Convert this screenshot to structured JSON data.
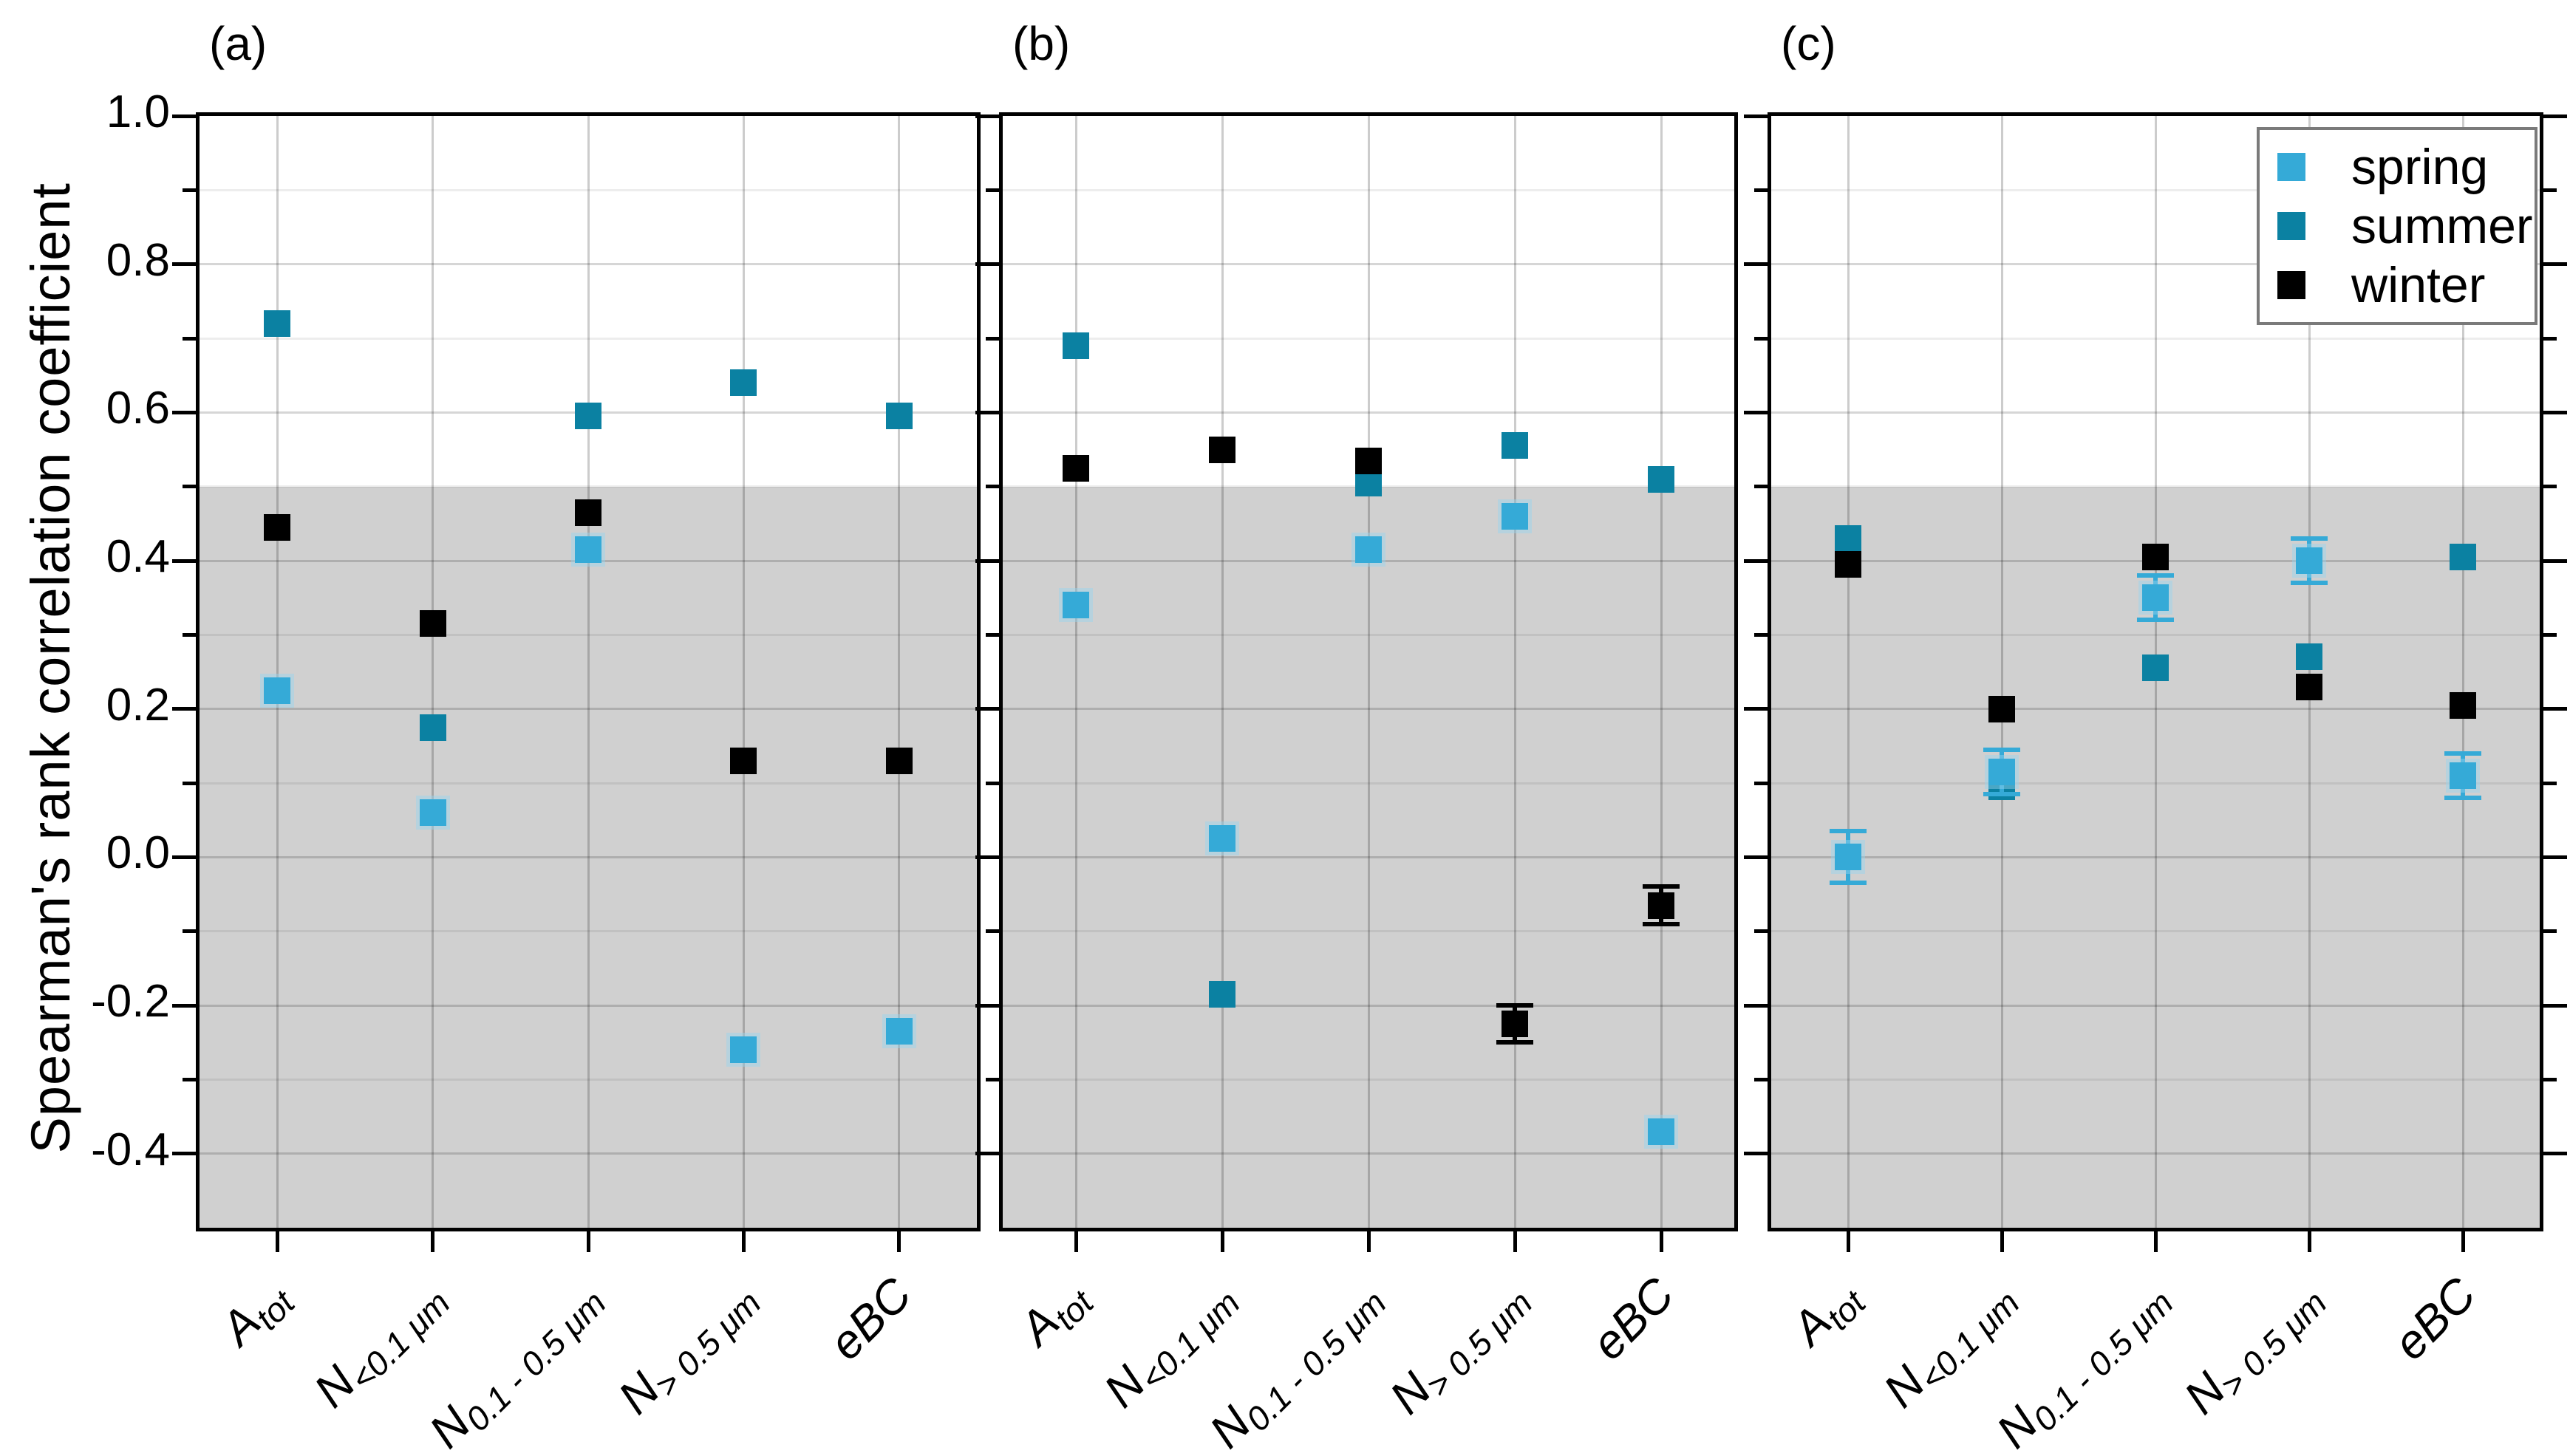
{
  "figure": {
    "y_axis": {
      "label": "Spearman's rank correlation coefficient",
      "min": -0.5,
      "max": 1.0,
      "major_ticks": [
        1.0,
        0.8,
        0.6,
        0.4,
        0.2,
        0.0,
        -0.2,
        -0.4
      ],
      "major_tick_labels": [
        "1.0",
        "0.8",
        "0.6",
        "0.4",
        "0.2",
        "0.0",
        "-0.2",
        "-0.4"
      ],
      "minor_ticks": [
        0.9,
        0.7,
        0.5,
        0.3,
        0.1,
        -0.1,
        -0.3
      ]
    },
    "legend": {
      "items": [
        {
          "label": "spring",
          "color": "#35aad7"
        },
        {
          "label": "summer",
          "color": "#0b81a2"
        },
        {
          "label": "winter",
          "color": "#000000"
        }
      ]
    }
  },
  "chart_data": {
    "type": "scatter",
    "title": "",
    "xlabel": "",
    "ylabel": "Spearman's rank correlation coefficient",
    "ylim": [
      -0.5,
      1.0
    ],
    "grid": "horizontal major (0.2 step) and minor (0.1 step) lines, vertical line per category",
    "legend_position": "top-right inside panel (c)",
    "significance_band": {
      "from": -0.5,
      "to": 0.5,
      "color": "#d0d0d0"
    },
    "categories": [
      "A_tot",
      "N_<0.1 um",
      "N_0.1-0.5 um",
      "N_>0.5 um",
      "eBC"
    ],
    "categories_display": [
      {
        "base": "A",
        "sub": "tot"
      },
      {
        "base": "N",
        "sub": "<0.1 μm"
      },
      {
        "base": "N",
        "sub": "0.1 - 0.5 μm"
      },
      {
        "base": "N",
        "sub": "> 0.5 μm"
      },
      {
        "base": "eBC",
        "sub": ""
      }
    ],
    "series_colors": {
      "spring": "#35aad7",
      "summer": "#0b81a2",
      "winter": "#000000"
    },
    "panels": [
      {
        "title": "(a)",
        "series": [
          {
            "name": "summer",
            "values": [
              0.72,
              0.175,
              0.595,
              0.64,
              0.595
            ],
            "errors": [
              null,
              null,
              null,
              null,
              null
            ]
          },
          {
            "name": "spring",
            "values": [
              0.225,
              0.06,
              0.415,
              -0.26,
              -0.235
            ],
            "errors": [
              null,
              null,
              null,
              null,
              null
            ]
          },
          {
            "name": "winter",
            "values": [
              0.445,
              0.315,
              0.465,
              0.13,
              0.13
            ],
            "errors": [
              null,
              null,
              null,
              null,
              null
            ]
          }
        ]
      },
      {
        "title": "(b)",
        "series": [
          {
            "name": "summer",
            "values": [
              0.69,
              -0.185,
              0.505,
              0.555,
              0.51
            ],
            "errors": [
              null,
              null,
              null,
              null,
              null
            ]
          },
          {
            "name": "spring",
            "values": [
              0.34,
              0.025,
              0.415,
              0.46,
              -0.37
            ],
            "errors": [
              null,
              null,
              null,
              null,
              null
            ]
          },
          {
            "name": "winter",
            "values": [
              0.525,
              0.55,
              0.535,
              -0.225,
              -0.065
            ],
            "errors": [
              null,
              null,
              null,
              0.025,
              0.025
            ]
          }
        ]
      },
      {
        "title": "(c)",
        "series": [
          {
            "name": "summer",
            "values": [
              0.43,
              0.095,
              0.255,
              0.27,
              0.405
            ],
            "errors": [
              null,
              null,
              null,
              null,
              null
            ]
          },
          {
            "name": "spring",
            "values": [
              0.0,
              0.115,
              0.35,
              0.4,
              0.11
            ],
            "errors": [
              0.035,
              0.03,
              0.03,
              0.03,
              0.03
            ]
          },
          {
            "name": "winter",
            "values": [
              0.395,
              0.2,
              0.405,
              0.23,
              0.205
            ],
            "errors": [
              null,
              null,
              null,
              null,
              null
            ]
          }
        ]
      }
    ]
  }
}
